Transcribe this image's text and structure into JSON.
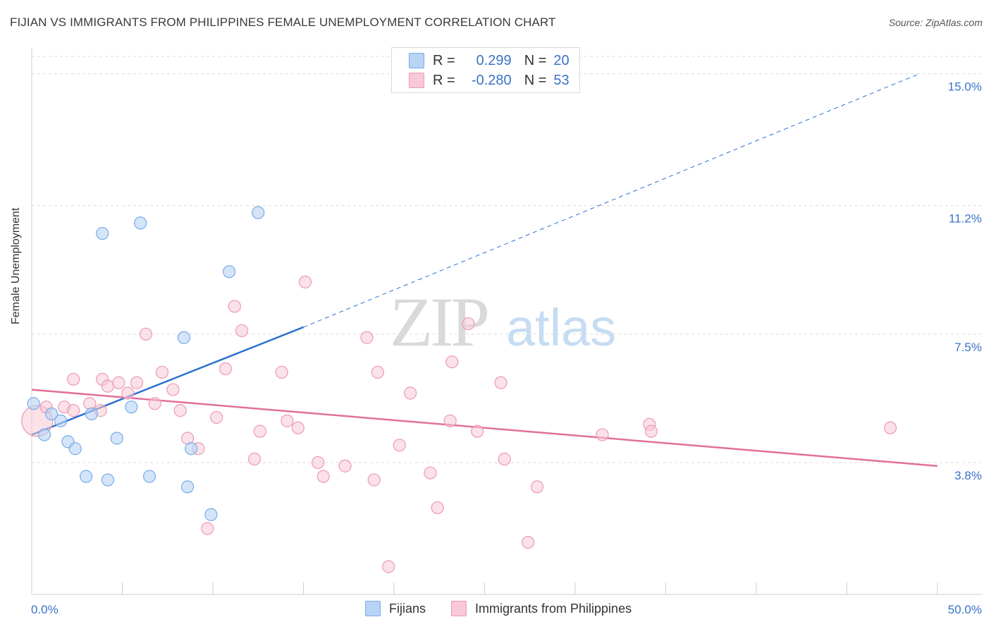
{
  "header": {
    "title": "FIJIAN VS IMMIGRANTS FROM PHILIPPINES FEMALE UNEMPLOYMENT CORRELATION CHART",
    "source": "Source: ZipAtlas.com"
  },
  "legend": {
    "row1": {
      "r_label": "R =",
      "r_value": "0.299",
      "n_label": "N =",
      "n_value": "20"
    },
    "row2": {
      "r_label": "R =",
      "r_value": "-0.280",
      "n_label": "N =",
      "n_value": "53"
    }
  },
  "bottom_legend": {
    "fijians": "Fijians",
    "philippines": "Immigrants from Philippines"
  },
  "colors": {
    "fijians_fill": "#b8d4f5",
    "fijians_stroke": "#7aaae6",
    "fijians_line": "#2b6fcf",
    "phil_fill": "#f8c9d6",
    "phil_stroke": "#ec9ab4",
    "phil_line": "#e3709a",
    "axis_text": "#3a72c8",
    "grid": "#dcdcdc"
  },
  "chart_data": {
    "type": "scatter",
    "title": "FIJIAN VS IMMIGRANTS FROM PHILIPPINES FEMALE UNEMPLOYMENT CORRELATION CHART",
    "xlabel": "",
    "ylabel": "Female Unemployment",
    "xlim": [
      0,
      50
    ],
    "ylim": [
      0,
      15.5
    ],
    "x_tick_labels": [
      "0.0%",
      "50.0%"
    ],
    "y_ticks": [
      3.8,
      7.5,
      11.2,
      15.0
    ],
    "y_tick_labels": [
      "3.8%",
      "7.5%",
      "11.2%",
      "15.0%"
    ],
    "grid": true,
    "legend_position": "top-center",
    "series": [
      {
        "name": "Fijians",
        "points": [
          [
            0.1,
            5.5
          ],
          [
            0.7,
            4.6
          ],
          [
            1.1,
            5.2
          ],
          [
            1.6,
            5.0
          ],
          [
            2.0,
            4.4
          ],
          [
            2.4,
            4.2
          ],
          [
            3.0,
            3.4
          ],
          [
            3.3,
            5.2
          ],
          [
            3.9,
            10.4
          ],
          [
            4.2,
            3.3
          ],
          [
            4.7,
            4.5
          ],
          [
            5.5,
            5.4
          ],
          [
            6.0,
            10.7
          ],
          [
            6.5,
            3.4
          ],
          [
            8.4,
            7.4
          ],
          [
            8.6,
            3.1
          ],
          [
            8.8,
            4.2
          ],
          [
            9.9,
            2.3
          ],
          [
            10.9,
            9.3
          ],
          [
            12.5,
            11.0
          ]
        ],
        "trend": {
          "x": [
            0,
            15,
            49
          ],
          "y": [
            4.6,
            7.7,
            15.0
          ],
          "solid_until_x": 15
        }
      },
      {
        "name": "Immigrants from Philippines",
        "points": [
          [
            0.3,
            5.0
          ],
          [
            0.8,
            5.4
          ],
          [
            1.8,
            5.4
          ],
          [
            2.3,
            5.3
          ],
          [
            2.3,
            6.2
          ],
          [
            3.2,
            5.5
          ],
          [
            3.8,
            5.3
          ],
          [
            3.9,
            6.2
          ],
          [
            4.2,
            6.0
          ],
          [
            4.8,
            6.1
          ],
          [
            5.3,
            5.8
          ],
          [
            5.8,
            6.1
          ],
          [
            6.3,
            7.5
          ],
          [
            6.8,
            5.5
          ],
          [
            7.2,
            6.4
          ],
          [
            7.8,
            5.9
          ],
          [
            8.2,
            5.3
          ],
          [
            8.6,
            4.5
          ],
          [
            9.2,
            4.2
          ],
          [
            9.7,
            1.9
          ],
          [
            10.2,
            5.1
          ],
          [
            10.7,
            6.5
          ],
          [
            11.2,
            8.3
          ],
          [
            11.6,
            7.6
          ],
          [
            12.3,
            3.9
          ],
          [
            12.6,
            4.7
          ],
          [
            13.8,
            6.4
          ],
          [
            14.1,
            5.0
          ],
          [
            14.7,
            4.8
          ],
          [
            15.1,
            9.0
          ],
          [
            15.8,
            3.8
          ],
          [
            16.1,
            3.4
          ],
          [
            17.3,
            3.7
          ],
          [
            18.5,
            7.4
          ],
          [
            18.9,
            3.3
          ],
          [
            19.1,
            6.4
          ],
          [
            19.7,
            0.8
          ],
          [
            20.3,
            4.3
          ],
          [
            20.9,
            5.8
          ],
          [
            22.0,
            3.5
          ],
          [
            22.4,
            2.5
          ],
          [
            23.1,
            5.0
          ],
          [
            23.2,
            6.7
          ],
          [
            24.1,
            7.8
          ],
          [
            24.6,
            4.7
          ],
          [
            25.9,
            6.1
          ],
          [
            26.1,
            3.9
          ],
          [
            27.4,
            1.5
          ],
          [
            27.9,
            3.1
          ],
          [
            31.5,
            4.6
          ],
          [
            34.1,
            4.9
          ],
          [
            34.2,
            4.7
          ],
          [
            47.4,
            4.8
          ]
        ],
        "trend": {
          "x": [
            0,
            50
          ],
          "y": [
            5.9,
            3.7
          ]
        }
      }
    ]
  }
}
